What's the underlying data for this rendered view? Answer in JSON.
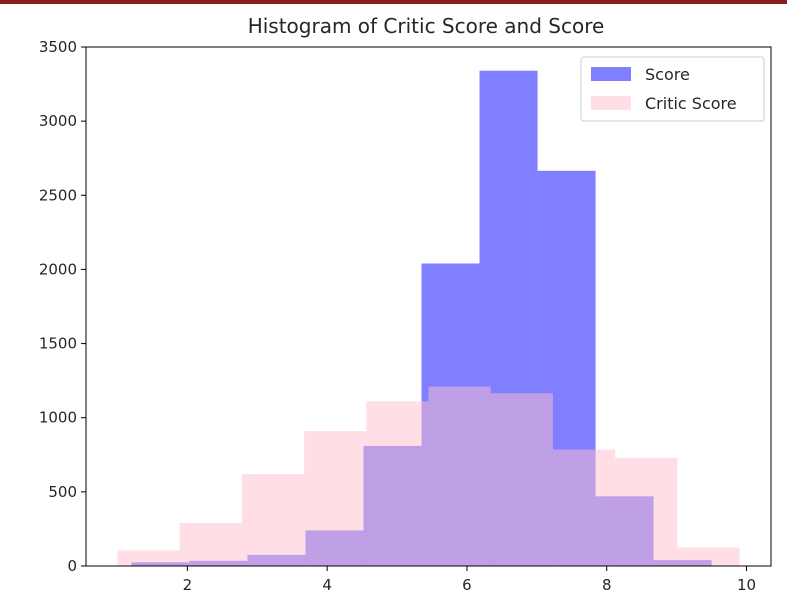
{
  "chart_data": {
    "type": "bar",
    "title": "Histogram of Critic Score and Score",
    "xlabel": "",
    "ylabel": "",
    "xlim": [
      0.55,
      10.35
    ],
    "ylim": [
      0,
      3500
    ],
    "xticks": [
      2,
      4,
      6,
      8,
      10
    ],
    "yticks": [
      0,
      500,
      1000,
      1500,
      2000,
      2500,
      3000,
      3500
    ],
    "grid": false,
    "legend_position": "top-right",
    "series": [
      {
        "name": "Score",
        "color": "#0000ff",
        "alpha": 0.5,
        "bin_edges": [
          1.2,
          2.03,
          2.86,
          3.69,
          4.52,
          5.35,
          6.18,
          7.01,
          7.84,
          8.67,
          9.5
        ],
        "values": [
          25,
          35,
          75,
          240,
          810,
          2040,
          3340,
          2665,
          470,
          40
        ]
      },
      {
        "name": "Critic Score",
        "color": "#ffc0cb",
        "alpha": 0.5,
        "bin_edges": [
          1.0,
          1.89,
          2.78,
          3.67,
          4.56,
          5.45,
          6.34,
          7.23,
          8.12,
          9.01,
          9.9
        ],
        "values": [
          105,
          290,
          620,
          910,
          1110,
          1210,
          1165,
          785,
          730,
          125
        ]
      }
    ]
  }
}
